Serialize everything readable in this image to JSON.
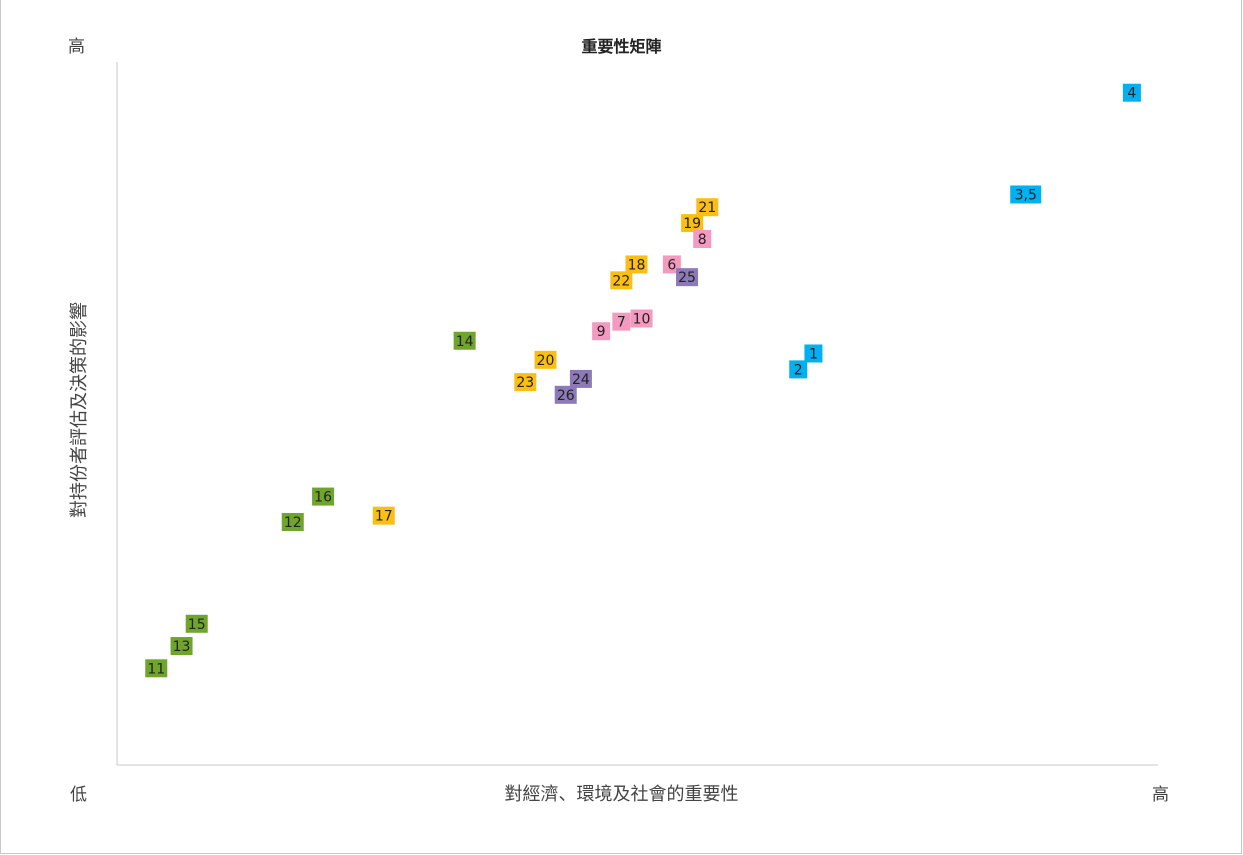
{
  "chart_data": {
    "type": "scatter",
    "title": "重要性矩陣",
    "xlabel": "對經濟、環境及社會的重要性",
    "ylabel": "對持份者評估及決策的影響",
    "x_low_label": "低",
    "x_high_label": "高",
    "y_high_label": "高",
    "xlim": [
      0,
      100
    ],
    "ylim": [
      0,
      100
    ],
    "grid": false,
    "legend": "none",
    "colors": {
      "blue": "#00b0f0",
      "pink": "#f49ac1",
      "yellow": "#fbbf14",
      "purple": "#8c7ab8",
      "green": "#70a52d"
    },
    "points": [
      {
        "label": "4",
        "x": 99.0,
        "y": 98.0,
        "color": "blue"
      },
      {
        "label": "3,5",
        "x": 88.5,
        "y": 82.0,
        "color": "blue"
      },
      {
        "label": "21",
        "x": 57.0,
        "y": 80.0,
        "color": "yellow"
      },
      {
        "label": "19",
        "x": 55.5,
        "y": 77.5,
        "color": "yellow"
      },
      {
        "label": "8",
        "x": 56.5,
        "y": 75.0,
        "color": "pink"
      },
      {
        "label": "18",
        "x": 50.0,
        "y": 71.0,
        "color": "yellow"
      },
      {
        "label": "6",
        "x": 53.5,
        "y": 71.0,
        "color": "pink"
      },
      {
        "label": "22",
        "x": 48.5,
        "y": 68.5,
        "color": "yellow"
      },
      {
        "label": "25",
        "x": 55.0,
        "y": 69.0,
        "color": "purple"
      },
      {
        "label": "10",
        "x": 50.5,
        "y": 62.5,
        "color": "pink"
      },
      {
        "label": "7",
        "x": 48.5,
        "y": 62.0,
        "color": "pink"
      },
      {
        "label": "9",
        "x": 46.5,
        "y": 60.5,
        "color": "pink"
      },
      {
        "label": "14",
        "x": 33.0,
        "y": 59.0,
        "color": "green"
      },
      {
        "label": "1",
        "x": 67.5,
        "y": 57.0,
        "color": "blue"
      },
      {
        "label": "20",
        "x": 41.0,
        "y": 56.0,
        "color": "yellow"
      },
      {
        "label": "2",
        "x": 66.0,
        "y": 54.5,
        "color": "blue"
      },
      {
        "label": "24",
        "x": 44.5,
        "y": 53.0,
        "color": "purple"
      },
      {
        "label": "23",
        "x": 39.0,
        "y": 52.5,
        "color": "yellow"
      },
      {
        "label": "26",
        "x": 43.0,
        "y": 50.5,
        "color": "purple"
      },
      {
        "label": "16",
        "x": 19.0,
        "y": 34.5,
        "color": "green"
      },
      {
        "label": "17",
        "x": 25.0,
        "y": 31.5,
        "color": "yellow"
      },
      {
        "label": "12",
        "x": 16.0,
        "y": 30.5,
        "color": "green"
      },
      {
        "label": "15",
        "x": 6.5,
        "y": 14.5,
        "color": "green"
      },
      {
        "label": "13",
        "x": 5.0,
        "y": 11.0,
        "color": "green"
      },
      {
        "label": "11",
        "x": 2.5,
        "y": 7.5,
        "color": "green"
      }
    ]
  }
}
